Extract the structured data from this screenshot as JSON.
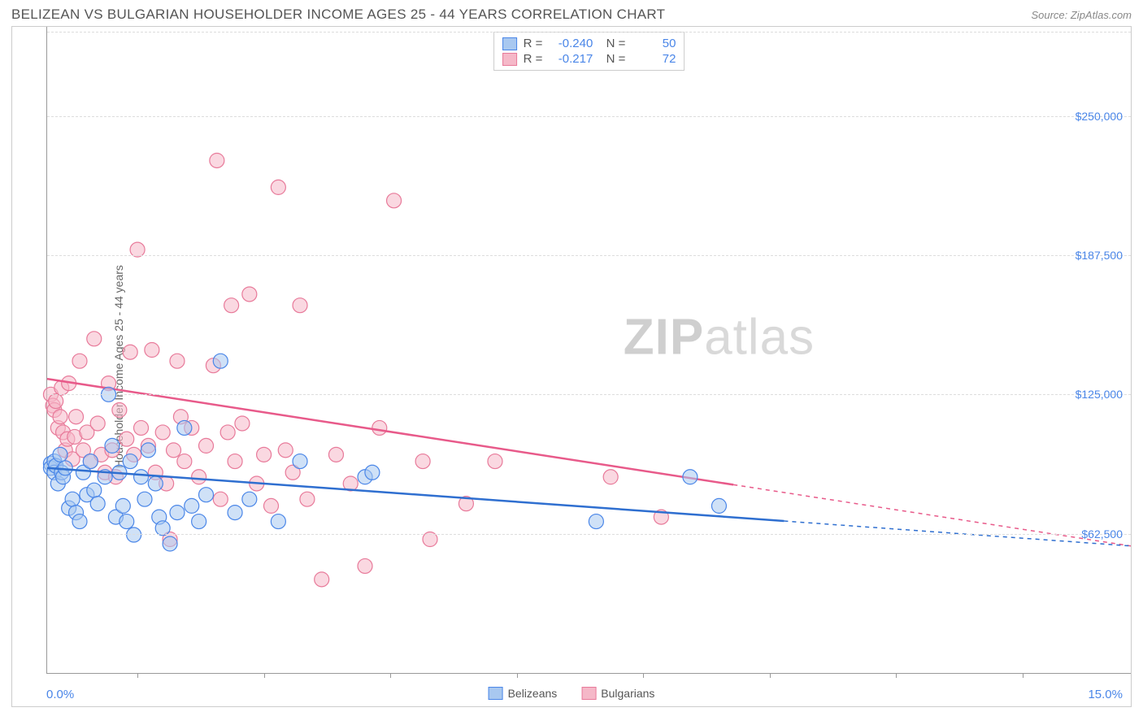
{
  "header": {
    "title": "BELIZEAN VS BULGARIAN HOUSEHOLDER INCOME AGES 25 - 44 YEARS CORRELATION CHART",
    "source": "Source: ZipAtlas.com"
  },
  "chart": {
    "type": "scatter",
    "ylabel": "Householder Income Ages 25 - 44 years",
    "xlim": [
      0,
      15
    ],
    "ylim": [
      0,
      290000
    ],
    "xaxis_min_label": "0.0%",
    "xaxis_max_label": "15.0%",
    "ytick_values": [
      62500,
      125000,
      187500,
      250000
    ],
    "ytick_labels": [
      "$62,500",
      "$125,000",
      "$187,500",
      "$250,000"
    ],
    "xtick_values": [
      1.25,
      3.0,
      4.75,
      6.5,
      8.25,
      10.0,
      11.75,
      13.5
    ],
    "background_color": "#ffffff",
    "grid_color": "#dddddd",
    "axis_color": "#999999",
    "marker_radius": 9,
    "marker_opacity": 0.55,
    "line_width": 2.5,
    "watermark_text_bold": "ZIP",
    "watermark_text_rest": "atlas",
    "series": {
      "belizeans": {
        "label": "Belizeans",
        "fill": "#a8c8f0",
        "stroke": "#4a86e8",
        "line_color": "#2f6fd0",
        "R": "-0.240",
        "N": "50",
        "trend": {
          "x1": 0,
          "y1": 92000,
          "x2": 15.0,
          "y2": 57000
        },
        "trend_solid_end_x": 10.2,
        "points": [
          [
            0.05,
            94000
          ],
          [
            0.05,
            92000
          ],
          [
            0.1,
            95000
          ],
          [
            0.1,
            90000
          ],
          [
            0.12,
            93000
          ],
          [
            0.15,
            85000
          ],
          [
            0.18,
            98000
          ],
          [
            0.2,
            90000
          ],
          [
            0.22,
            88000
          ],
          [
            0.25,
            92000
          ],
          [
            0.3,
            74000
          ],
          [
            0.35,
            78000
          ],
          [
            0.4,
            72000
          ],
          [
            0.45,
            68000
          ],
          [
            0.5,
            90000
          ],
          [
            0.55,
            80000
          ],
          [
            0.6,
            95000
          ],
          [
            0.65,
            82000
          ],
          [
            0.7,
            76000
          ],
          [
            0.8,
            88000
          ],
          [
            0.85,
            125000
          ],
          [
            0.9,
            102000
          ],
          [
            0.95,
            70000
          ],
          [
            1.0,
            90000
          ],
          [
            1.05,
            75000
          ],
          [
            1.1,
            68000
          ],
          [
            1.15,
            95000
          ],
          [
            1.2,
            62000
          ],
          [
            1.3,
            88000
          ],
          [
            1.35,
            78000
          ],
          [
            1.4,
            100000
          ],
          [
            1.5,
            85000
          ],
          [
            1.55,
            70000
          ],
          [
            1.6,
            65000
          ],
          [
            1.7,
            58000
          ],
          [
            1.8,
            72000
          ],
          [
            1.9,
            110000
          ],
          [
            2.0,
            75000
          ],
          [
            2.1,
            68000
          ],
          [
            2.2,
            80000
          ],
          [
            2.4,
            140000
          ],
          [
            2.6,
            72000
          ],
          [
            2.8,
            78000
          ],
          [
            3.2,
            68000
          ],
          [
            3.5,
            95000
          ],
          [
            4.4,
            88000
          ],
          [
            4.5,
            90000
          ],
          [
            7.6,
            68000
          ],
          [
            8.9,
            88000
          ],
          [
            9.3,
            75000
          ]
        ]
      },
      "bulgarians": {
        "label": "Bulgarians",
        "fill": "#f5b8c8",
        "stroke": "#e87a9a",
        "line_color": "#e85a8a",
        "R": "-0.217",
        "N": "72",
        "trend": {
          "x1": 0,
          "y1": 132000,
          "x2": 15.0,
          "y2": 57000
        },
        "trend_solid_end_x": 9.5,
        "points": [
          [
            0.05,
            125000
          ],
          [
            0.08,
            120000
          ],
          [
            0.1,
            118000
          ],
          [
            0.12,
            122000
          ],
          [
            0.15,
            110000
          ],
          [
            0.18,
            115000
          ],
          [
            0.2,
            128000
          ],
          [
            0.22,
            108000
          ],
          [
            0.25,
            100000
          ],
          [
            0.28,
            105000
          ],
          [
            0.3,
            130000
          ],
          [
            0.35,
            96000
          ],
          [
            0.38,
            106000
          ],
          [
            0.4,
            115000
          ],
          [
            0.45,
            140000
          ],
          [
            0.5,
            100000
          ],
          [
            0.55,
            108000
          ],
          [
            0.6,
            95000
          ],
          [
            0.65,
            150000
          ],
          [
            0.7,
            112000
          ],
          [
            0.75,
            98000
          ],
          [
            0.8,
            90000
          ],
          [
            0.85,
            130000
          ],
          [
            0.9,
            100000
          ],
          [
            0.95,
            88000
          ],
          [
            1.0,
            118000
          ],
          [
            1.1,
            105000
          ],
          [
            1.15,
            144000
          ],
          [
            1.2,
            98000
          ],
          [
            1.25,
            190000
          ],
          [
            1.3,
            110000
          ],
          [
            1.4,
            102000
          ],
          [
            1.45,
            145000
          ],
          [
            1.5,
            90000
          ],
          [
            1.6,
            108000
          ],
          [
            1.65,
            85000
          ],
          [
            1.7,
            60000
          ],
          [
            1.75,
            100000
          ],
          [
            1.8,
            140000
          ],
          [
            1.85,
            115000
          ],
          [
            1.9,
            95000
          ],
          [
            2.0,
            110000
          ],
          [
            2.1,
            88000
          ],
          [
            2.2,
            102000
          ],
          [
            2.3,
            138000
          ],
          [
            2.35,
            230000
          ],
          [
            2.4,
            78000
          ],
          [
            2.5,
            108000
          ],
          [
            2.55,
            165000
          ],
          [
            2.6,
            95000
          ],
          [
            2.7,
            112000
          ],
          [
            2.8,
            170000
          ],
          [
            2.9,
            85000
          ],
          [
            3.0,
            98000
          ],
          [
            3.1,
            75000
          ],
          [
            3.2,
            218000
          ],
          [
            3.3,
            100000
          ],
          [
            3.4,
            90000
          ],
          [
            3.5,
            165000
          ],
          [
            3.6,
            78000
          ],
          [
            3.8,
            42000
          ],
          [
            4.0,
            98000
          ],
          [
            4.2,
            85000
          ],
          [
            4.4,
            48000
          ],
          [
            4.6,
            110000
          ],
          [
            4.8,
            212000
          ],
          [
            5.2,
            95000
          ],
          [
            5.3,
            60000
          ],
          [
            5.8,
            76000
          ],
          [
            6.2,
            95000
          ],
          [
            7.8,
            88000
          ],
          [
            8.5,
            70000
          ]
        ]
      }
    },
    "bottom_legend": [
      {
        "label": "Belizeans",
        "key": "belizeans"
      },
      {
        "label": "Bulgarians",
        "key": "bulgarians"
      }
    ]
  }
}
